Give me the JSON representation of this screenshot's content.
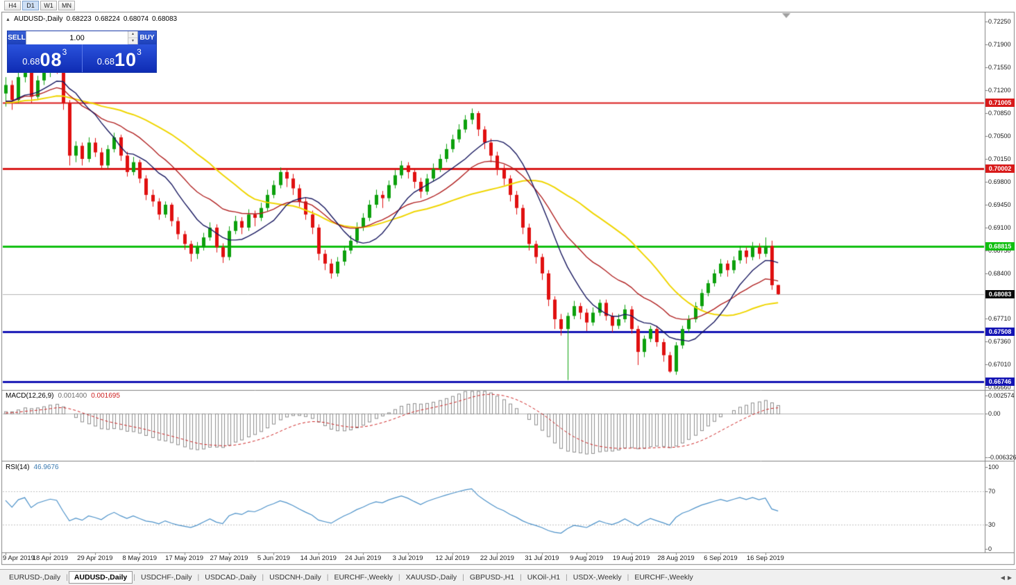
{
  "window": {
    "timeframe_buttons": [
      "H4",
      "D1",
      "W1",
      "MN"
    ],
    "active_timeframe": "D1"
  },
  "icons": {
    "collapse": "▲",
    "spin_up": "▲",
    "spin_down": "▼",
    "scroll_left": "◀",
    "scroll_right": "▶"
  },
  "header": {
    "symbol": "AUDUSD-,Daily",
    "open": "0.68223",
    "high": "0.68224",
    "low": "0.68074",
    "close": "0.68083"
  },
  "trade": {
    "sell_label": "SELL",
    "buy_label": "BUY",
    "volume": "1.00",
    "sell_price": {
      "prefix": "0.68",
      "big": "08",
      "sup": "3"
    },
    "buy_price": {
      "prefix": "0.68",
      "big": "10",
      "sup": "3"
    }
  },
  "macd_panel": {
    "title": "MACD(12,26,9)",
    "main_value": "0.001400",
    "signal_value": "0.001695",
    "histogram_color": "#8c8c8c",
    "signal_color": "#cc2222",
    "scale_ticks": [
      {
        "v": 0.002574,
        "label": "0.002574"
      },
      {
        "v": 0,
        "label": "0.00"
      },
      {
        "v": -0.006326,
        "label": "-0.006326"
      }
    ]
  },
  "rsi_panel": {
    "title": "RSI(14)",
    "value": "46.9676",
    "line_color": "#4a90c8",
    "levels": [
      70,
      30
    ],
    "scale_ticks": [
      {
        "v": 100,
        "label": "100"
      },
      {
        "v": 70,
        "label": "70"
      },
      {
        "v": 30,
        "label": "30"
      },
      {
        "v": 0,
        "label": "0"
      }
    ]
  },
  "tabs": {
    "items": [
      "EURUSD-,Daily",
      "AUDUSD-,Daily",
      "USDCHF-,Daily",
      "USDCAD-,Daily",
      "USDCNH-,Daily",
      "EURCHF-,Weekly",
      "XAUUSD-,Daily",
      "GBPUSD-,H1",
      "UKOil-,H1",
      "USDX-,Weekly",
      "EURCHF-,Weekly"
    ],
    "active_index": 1
  },
  "chart_data": {
    "type": "candlestick",
    "symbol": "AUDUSD-",
    "timeframe": "Daily",
    "price_factor": 0.0001,
    "up_color": "#0ca00c",
    "down_color": "#e01010",
    "candles": [
      [
        7115,
        7140,
        7095,
        7128
      ],
      [
        7128,
        7135,
        7090,
        7105
      ],
      [
        7105,
        7148,
        7100,
        7140
      ],
      [
        7140,
        7160,
        7132,
        7152
      ],
      [
        7152,
        7158,
        7100,
        7110
      ],
      [
        7110,
        7142,
        7105,
        7135
      ],
      [
        7135,
        7155,
        7128,
        7148
      ],
      [
        7148,
        7168,
        7140,
        7160
      ],
      [
        7160,
        7165,
        7145,
        7155
      ],
      [
        7155,
        7158,
        7090,
        7100
      ],
      [
        7100,
        7105,
        7005,
        7020
      ],
      [
        7020,
        7042,
        7010,
        7035
      ],
      [
        7035,
        7040,
        7005,
        7015
      ],
      [
        7015,
        7048,
        7010,
        7040
      ],
      [
        7040,
        7047,
        7018,
        7025
      ],
      [
        7025,
        7032,
        6998,
        7005
      ],
      [
        7005,
        7036,
        7000,
        7030
      ],
      [
        7030,
        7055,
        7025,
        7048
      ],
      [
        7048,
        7052,
        7012,
        7020
      ],
      [
        7020,
        7026,
        6988,
        6995
      ],
      [
        6995,
        7018,
        6990,
        7010
      ],
      [
        7010,
        7014,
        6978,
        6985
      ],
      [
        6985,
        6990,
        6952,
        6960
      ],
      [
        6960,
        6968,
        6942,
        6950
      ],
      [
        6950,
        6955,
        6922,
        6930
      ],
      [
        6930,
        6950,
        6925,
        6945
      ],
      [
        6945,
        6948,
        6912,
        6920
      ],
      [
        6920,
        6926,
        6892,
        6900
      ],
      [
        6900,
        6905,
        6876,
        6885
      ],
      [
        6885,
        6890,
        6858,
        6870
      ],
      [
        6870,
        6888,
        6862,
        6880
      ],
      [
        6880,
        6902,
        6875,
        6895
      ],
      [
        6895,
        6918,
        6890,
        6910
      ],
      [
        6910,
        6915,
        6872,
        6880
      ],
      [
        6880,
        6886,
        6856,
        6865
      ],
      [
        6865,
        6912,
        6860,
        6905
      ],
      [
        6905,
        6928,
        6900,
        6920
      ],
      [
        6920,
        6926,
        6900,
        6910
      ],
      [
        6910,
        6938,
        6905,
        6930
      ],
      [
        6930,
        6936,
        6912,
        6925
      ],
      [
        6925,
        6948,
        6920,
        6940
      ],
      [
        6940,
        6968,
        6935,
        6960
      ],
      [
        6960,
        6982,
        6955,
        6975
      ],
      [
        6975,
        7002,
        6970,
        6995
      ],
      [
        6995,
        7000,
        6972,
        6985
      ],
      [
        6985,
        6992,
        6960,
        6970
      ],
      [
        6970,
        6976,
        6942,
        6950
      ],
      [
        6950,
        6956,
        6922,
        6930
      ],
      [
        6930,
        6936,
        6900,
        6910
      ],
      [
        6910,
        6915,
        6860,
        6870
      ],
      [
        6870,
        6876,
        6845,
        6855
      ],
      [
        6855,
        6862,
        6832,
        6840
      ],
      [
        6840,
        6865,
        6835,
        6858
      ],
      [
        6858,
        6882,
        6852,
        6875
      ],
      [
        6875,
        6898,
        6870,
        6890
      ],
      [
        6890,
        6918,
        6885,
        6910
      ],
      [
        6910,
        6932,
        6905,
        6925
      ],
      [
        6925,
        6952,
        6920,
        6945
      ],
      [
        6945,
        6968,
        6940,
        6960
      ],
      [
        6960,
        6966,
        6940,
        6955
      ],
      [
        6955,
        6982,
        6950,
        6975
      ],
      [
        6975,
        6998,
        6970,
        6990
      ],
      [
        6990,
        7012,
        6985,
        7005
      ],
      [
        7005,
        7010,
        6985,
        6995
      ],
      [
        6995,
        7000,
        6970,
        6980
      ],
      [
        6980,
        6986,
        6955,
        6965
      ],
      [
        6965,
        6992,
        6960,
        6985
      ],
      [
        6985,
        7008,
        6980,
        7000
      ],
      [
        7000,
        7022,
        6995,
        7015
      ],
      [
        7015,
        7038,
        7010,
        7030
      ],
      [
        7030,
        7052,
        7025,
        7045
      ],
      [
        7045,
        7068,
        7040,
        7060
      ],
      [
        7060,
        7082,
        7055,
        7075
      ],
      [
        7075,
        7092,
        7068,
        7085
      ],
      [
        7085,
        7088,
        7050,
        7060
      ],
      [
        7060,
        7065,
        7030,
        7040
      ],
      [
        7040,
        7046,
        7010,
        7020
      ],
      [
        7020,
        7026,
        6990,
        7000
      ],
      [
        7000,
        7006,
        6975,
        6985
      ],
      [
        6985,
        6990,
        6950,
        6960
      ],
      [
        6960,
        6966,
        6930,
        6940
      ],
      [
        6940,
        6945,
        6900,
        6910
      ],
      [
        6910,
        6916,
        6875,
        6885
      ],
      [
        6885,
        6890,
        6855,
        6865
      ],
      [
        6865,
        6870,
        6830,
        6840
      ],
      [
        6840,
        6845,
        6790,
        6800
      ],
      [
        6800,
        6805,
        6755,
        6770
      ],
      [
        6770,
        6778,
        6745,
        6755
      ],
      [
        6755,
        6780,
        6677,
        6775
      ],
      [
        6775,
        6798,
        6770,
        6790
      ],
      [
        6790,
        6795,
        6770,
        6780
      ],
      [
        6780,
        6786,
        6752,
        6765
      ],
      [
        6765,
        6788,
        6760,
        6780
      ],
      [
        6780,
        6800,
        6775,
        6795
      ],
      [
        6795,
        6800,
        6768,
        6775
      ],
      [
        6775,
        6780,
        6750,
        6760
      ],
      [
        6760,
        6778,
        6755,
        6770
      ],
      [
        6770,
        6792,
        6765,
        6785
      ],
      [
        6785,
        6790,
        6748,
        6755
      ],
      [
        6755,
        6760,
        6700,
        6720
      ],
      [
        6720,
        6745,
        6712,
        6740
      ],
      [
        6740,
        6760,
        6735,
        6755
      ],
      [
        6755,
        6760,
        6728,
        6735
      ],
      [
        6735,
        6740,
        6705,
        6715
      ],
      [
        6715,
        6720,
        6688,
        6690
      ],
      [
        6690,
        6735,
        6685,
        6730
      ],
      [
        6730,
        6760,
        6725,
        6755
      ],
      [
        6755,
        6776,
        6750,
        6770
      ],
      [
        6770,
        6796,
        6765,
        6790
      ],
      [
        6790,
        6816,
        6785,
        6810
      ],
      [
        6810,
        6830,
        6805,
        6825
      ],
      [
        6825,
        6846,
        6820,
        6840
      ],
      [
        6840,
        6862,
        6835,
        6855
      ],
      [
        6855,
        6860,
        6835,
        6845
      ],
      [
        6845,
        6866,
        6840,
        6860
      ],
      [
        6860,
        6882,
        6855,
        6875
      ],
      [
        6875,
        6880,
        6855,
        6865
      ],
      [
        6865,
        6888,
        6860,
        6880
      ],
      [
        6880,
        6886,
        6862,
        6870
      ],
      [
        6870,
        6895,
        6865,
        6882
      ],
      [
        6882,
        6890,
        6815,
        6822
      ],
      [
        6822.3,
        6822.4,
        6807.4,
        6808.3
      ]
    ],
    "x_axis": {
      "label_indices": [
        0,
        7,
        14,
        21,
        28,
        35,
        42,
        49,
        56,
        63,
        70,
        77,
        84,
        91,
        98,
        105,
        112,
        119
      ],
      "labels": [
        "9 Apr 2019",
        "18 Apr 2019",
        "29 Apr 2019",
        "8 May 2019",
        "17 May 2019",
        "27 May 2019",
        "5 Jun 2019",
        "14 Jun 2019",
        "24 Jun 2019",
        "3 Jul 2019",
        "12 Jul 2019",
        "22 Jul 2019",
        "31 Jul 2019",
        "9 Aug 2019",
        "19 Aug 2019",
        "28 Aug 2019",
        "6 Sep 2019",
        "16 Sep 2019"
      ]
    },
    "y_axis": {
      "tick_labels": [
        "0.72250",
        "0.71900",
        "0.71550",
        "0.71200",
        "0.70850",
        "0.70500",
        "0.70150",
        "0.69800",
        "0.69450",
        "0.69100",
        "0.68750",
        "0.68400",
        "0.67710",
        "0.67360",
        "0.67010",
        "0.66660"
      ]
    },
    "overlays": {
      "horizontal_lines": [
        {
          "price": 0.71005,
          "label": "0.71005",
          "color": "#d81a1a",
          "width": 2
        },
        {
          "price": 0.70002,
          "label": "0.70002",
          "color": "#d81a1a",
          "width": 3
        },
        {
          "price": 0.68815,
          "label": "0.68815",
          "color": "#0fbf0f",
          "width": 3
        },
        {
          "price": 0.67508,
          "label": "0.67508",
          "color": "#1414b4",
          "width": 3
        },
        {
          "price": 0.66746,
          "label": "0.66746",
          "color": "#1414b4",
          "width": 3
        }
      ],
      "current_price": {
        "value": 0.68083,
        "label": "0.68083",
        "box_color": "#0a0a0a",
        "line_color": "#b4b4b4"
      },
      "moving_averages": [
        {
          "name": "fast",
          "type": "sma",
          "period": 10,
          "color": "#16165e"
        },
        {
          "name": "mid",
          "type": "ema",
          "period": 20,
          "color": "#b02020"
        },
        {
          "name": "slow",
          "type": "sma",
          "period": 30,
          "color": "#efd500"
        }
      ]
    }
  }
}
